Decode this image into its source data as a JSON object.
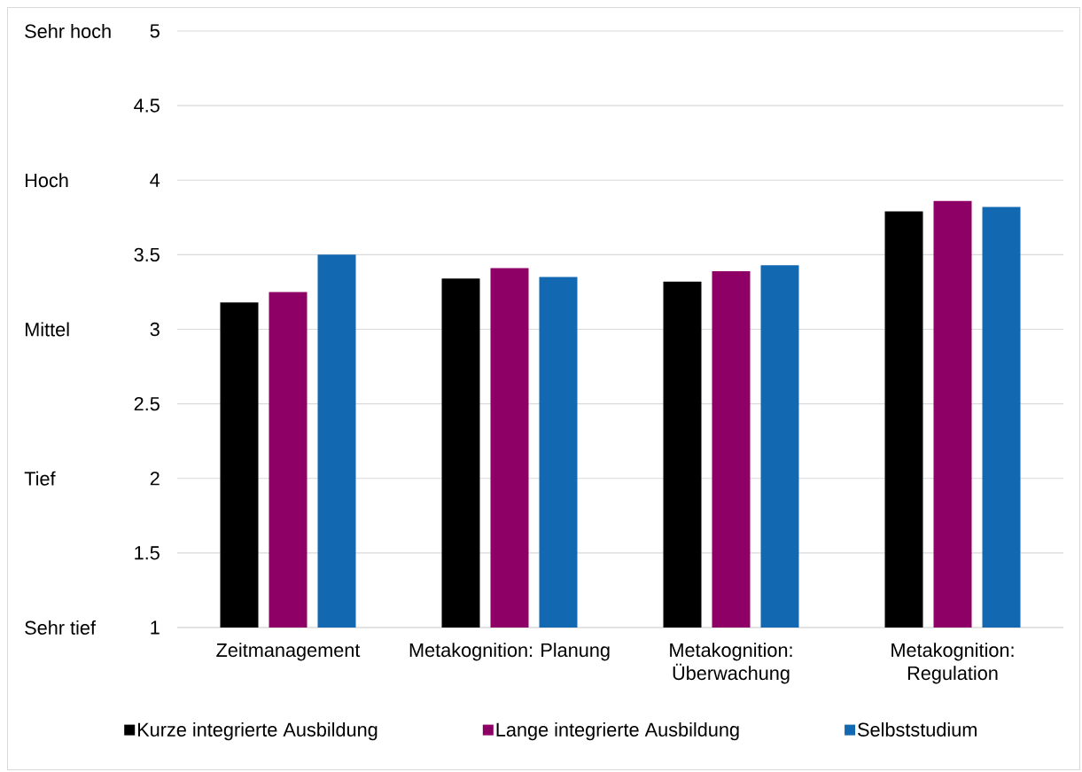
{
  "chart_data": {
    "type": "bar",
    "categories": [
      "Zeitmanagement",
      "Metakognition: Planung",
      "Metakognition: Überwachung",
      "Metakognition: Regulation"
    ],
    "series": [
      {
        "name": "Kurze integrierte Ausbildung",
        "color": "#000000",
        "values": [
          3.18,
          3.34,
          3.32,
          3.79
        ]
      },
      {
        "name": "Lange integrierte Ausbildung",
        "color": "#8e0066",
        "values": [
          3.25,
          3.41,
          3.39,
          3.86
        ]
      },
      {
        "name": "Selbststudium",
        "color": "#1369b1",
        "values": [
          3.5,
          3.35,
          3.43,
          3.82
        ]
      }
    ],
    "ylim": [
      1,
      5
    ],
    "yticks": [
      1,
      1.5,
      2,
      2.5,
      3,
      3.5,
      4,
      4.5,
      5
    ],
    "annotations": [
      "Sehr hoch",
      "Hoch",
      "Mittel",
      "Tief",
      "Sehr tief"
    ],
    "grid": "y",
    "legend": "bottom"
  }
}
